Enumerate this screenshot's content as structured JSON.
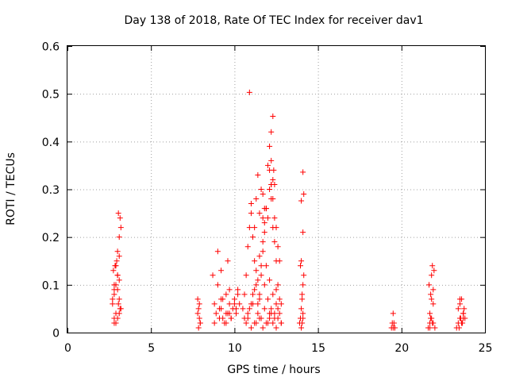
{
  "chart_data": {
    "type": "scatter",
    "title": "Day 138 of 2018, Rate Of TEC Index for receiver dav1",
    "xlabel": "GPS time / hours",
    "ylabel": "ROTI / TECUs",
    "xlim": [
      0,
      25
    ],
    "ylim": [
      0,
      0.6
    ],
    "xticks": [
      "0",
      "5",
      "10",
      "15",
      "20",
      "25"
    ],
    "yticks": [
      "0",
      "0.1",
      "0.2",
      "0.3",
      "0.4",
      "0.5",
      "0.6"
    ],
    "grid": true,
    "marker": "plus",
    "color": "#ff0000",
    "series": [
      {
        "name": "ROTI",
        "x": [
          2.7,
          2.8,
          2.9,
          3.0,
          3.1,
          3.2,
          2.8,
          2.9,
          3.0,
          3.1,
          2.75,
          2.85,
          2.95,
          3.05,
          3.15,
          2.8,
          2.9,
          3.0,
          3.1,
          2.7,
          2.8,
          3.0,
          3.1,
          3.2,
          3.05,
          3.15,
          3.1,
          2.9,
          3.0,
          2.8,
          7.8,
          7.85,
          7.9,
          7.95,
          7.8,
          7.9,
          7.85,
          7.95,
          8.7,
          8.8,
          8.9,
          9.0,
          9.1,
          9.2,
          9.3,
          9.4,
          9.5,
          9.6,
          9.7,
          9.8,
          9.9,
          10.0,
          10.1,
          10.2,
          10.3,
          8.8,
          9.0,
          9.1,
          9.2,
          9.3,
          9.5,
          9.6,
          9.7,
          9.8,
          10.0,
          10.2,
          9.2,
          9.5,
          9.7,
          10.1,
          10.5,
          10.6,
          10.7,
          10.8,
          10.9,
          11.0,
          11.1,
          11.2,
          11.3,
          11.4,
          11.5,
          11.6,
          11.7,
          11.8,
          11.9,
          12.0,
          12.1,
          12.2,
          12.3,
          12.4,
          12.5,
          12.6,
          12.7,
          12.8,
          10.6,
          10.8,
          11.0,
          11.2,
          11.4,
          11.6,
          11.8,
          12.0,
          12.2,
          12.4,
          12.6,
          12.8,
          10.7,
          10.9,
          11.1,
          11.3,
          11.5,
          11.7,
          11.9,
          12.1,
          12.3,
          12.5,
          12.7,
          11.0,
          11.2,
          11.3,
          11.4,
          11.6,
          11.7,
          11.8,
          11.9,
          12.0,
          12.1,
          12.2,
          12.3,
          12.4,
          12.5,
          12.6,
          12.7,
          11.3,
          11.5,
          11.7,
          11.9,
          12.1,
          12.3,
          12.5,
          10.9,
          11.5,
          11.7,
          11.8,
          12.1,
          12.2,
          12.3,
          12.2,
          12.35,
          12.4,
          12.2,
          12.3,
          11.0,
          11.2,
          11.4,
          11.6,
          11.8,
          12.0,
          12.2,
          12.4,
          12.6,
          12.8,
          10.8,
          11.1,
          11.5,
          12.1,
          12.5,
          13.9,
          14.0,
          14.05,
          14.1,
          14.15,
          13.95,
          14.0,
          14.1,
          14.05,
          13.95,
          14.1,
          14.0,
          14.05,
          14.1,
          14.15,
          14.0,
          14.1,
          19.4,
          19.5,
          19.55,
          19.6,
          19.45,
          19.5,
          19.6,
          21.6,
          21.7,
          21.8,
          21.9,
          22.0,
          21.65,
          21.75,
          21.85,
          21.95,
          21.7,
          21.8,
          21.9,
          21.75,
          21.85,
          21.9,
          21.7,
          21.8,
          23.3,
          23.4,
          23.5,
          23.6,
          23.7,
          23.8,
          23.4,
          23.5,
          23.6,
          23.7,
          23.45,
          23.55,
          23.65,
          23.75,
          23.5,
          23.6,
          23.7
        ],
        "y": [
          0.06,
          0.08,
          0.1,
          0.12,
          0.07,
          0.05,
          0.03,
          0.04,
          0.09,
          0.11,
          0.13,
          0.14,
          0.15,
          0.06,
          0.05,
          0.02,
          0.02,
          0.03,
          0.04,
          0.07,
          0.1,
          0.17,
          0.2,
          0.22,
          0.25,
          0.24,
          0.16,
          0.14,
          0.12,
          0.09,
          0.07,
          0.05,
          0.03,
          0.02,
          0.04,
          0.06,
          0.01,
          0.02,
          0.12,
          0.06,
          0.04,
          0.17,
          0.03,
          0.05,
          0.07,
          0.02,
          0.08,
          0.04,
          0.06,
          0.03,
          0.05,
          0.07,
          0.04,
          0.09,
          0.06,
          0.02,
          0.1,
          0.05,
          0.07,
          0.03,
          0.04,
          0.15,
          0.09,
          0.03,
          0.06,
          0.08,
          0.13,
          0.02,
          0.04,
          0.05,
          0.05,
          0.08,
          0.12,
          0.18,
          0.22,
          0.25,
          0.2,
          0.15,
          0.1,
          0.06,
          0.08,
          0.12,
          0.17,
          0.21,
          0.26,
          0.24,
          0.3,
          0.31,
          0.22,
          0.19,
          0.15,
          0.1,
          0.07,
          0.06,
          0.03,
          0.04,
          0.06,
          0.09,
          0.11,
          0.14,
          0.1,
          0.07,
          0.05,
          0.04,
          0.03,
          0.02,
          0.02,
          0.05,
          0.08,
          0.13,
          0.16,
          0.19,
          0.14,
          0.11,
          0.08,
          0.06,
          0.04,
          0.27,
          0.22,
          0.28,
          0.33,
          0.3,
          0.29,
          0.23,
          0.26,
          0.35,
          0.34,
          0.31,
          0.28,
          0.24,
          0.22,
          0.18,
          0.15,
          0.02,
          0.03,
          0.01,
          0.02,
          0.03,
          0.02,
          0.01,
          0.503,
          0.25,
          0.24,
          0.26,
          0.39,
          0.42,
          0.453,
          0.36,
          0.34,
          0.31,
          0.28,
          0.32,
          0.01,
          0.02,
          0.04,
          0.03,
          0.05,
          0.02,
          0.04,
          0.03,
          0.05,
          0.02,
          0.03,
          0.06,
          0.07,
          0.04,
          0.09,
          0.02,
          0.05,
          0.08,
          0.1,
          0.12,
          0.14,
          0.15,
          0.04,
          0.07,
          0.03,
          0.03,
          0.01,
          0.02,
          0.21,
          0.29,
          0.276,
          0.336,
          0.01,
          0.01,
          0.02,
          0.01,
          0.02,
          0.04,
          0.01,
          0.01,
          0.02,
          0.03,
          0.02,
          0.01,
          0.1,
          0.08,
          0.14,
          0.13,
          0.04,
          0.12,
          0.06,
          0.03,
          0.02,
          0.09,
          0.01,
          0.07,
          0.01,
          0.02,
          0.03,
          0.02,
          0.04,
          0.03,
          0.05,
          0.06,
          0.07,
          0.04,
          0.01,
          0.03,
          0.02,
          0.05,
          0.07,
          0.02,
          0.03
        ]
      }
    ]
  }
}
